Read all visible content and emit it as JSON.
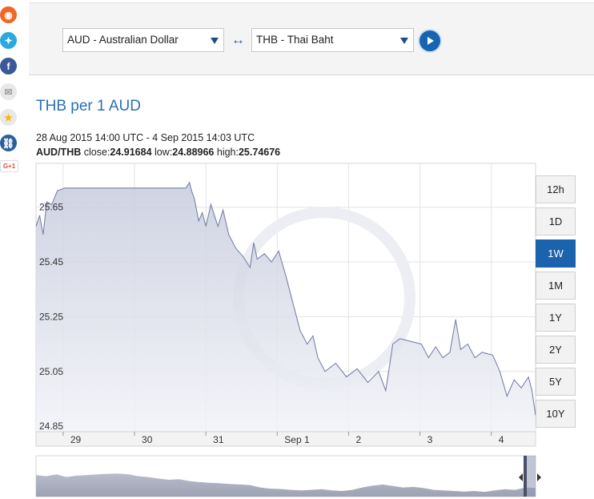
{
  "share": [
    {
      "name": "rss-icon",
      "color": "#f26522",
      "glyph": "◉"
    },
    {
      "name": "twitter-icon",
      "color": "#2aa9e0",
      "glyph": "✦"
    },
    {
      "name": "facebook-icon",
      "color": "#3b5998",
      "glyph": "f"
    },
    {
      "name": "email-icon",
      "color": "#9e9e9e",
      "glyph": "✉"
    },
    {
      "name": "favorite-star-icon",
      "color": "#f5b800",
      "glyph": "★"
    },
    {
      "name": "link-icon",
      "color": "#2a5f9e",
      "glyph": "⛓"
    },
    {
      "name": "google-plus-icon",
      "color": "#dd4b39",
      "glyph": "G+1"
    }
  ],
  "converter": {
    "from": "AUD - Australian Dollar",
    "to": "THB - Thai Baht",
    "swap_glyph": "↔"
  },
  "title": "THB per 1 AUD",
  "range": "28 Aug 2015 14:00 UTC - 4 Sep 2015 14:03 UTC",
  "stats": {
    "pair": "AUD/THB",
    "close_label": "close:",
    "close": "24.91684",
    "low_label": "low:",
    "low": "24.88966",
    "high_label": "high:",
    "high": "25.74676"
  },
  "timeframes": [
    "12h",
    "1D",
    "1W",
    "1M",
    "1Y",
    "2Y",
    "5Y",
    "10Y"
  ],
  "active_timeframe": "1W",
  "chart_data": {
    "type": "area",
    "ylim": [
      24.83,
      25.81
    ],
    "xlim": [
      0,
      7
    ],
    "yticks": [
      {
        "v": 25.65,
        "label": "25.65"
      },
      {
        "v": 25.45,
        "label": "25.45"
      },
      {
        "v": 25.25,
        "label": "25.25"
      },
      {
        "v": 25.05,
        "label": "25.05"
      },
      {
        "v": 24.85,
        "label": "24.85"
      }
    ],
    "xticks": [
      {
        "v": 0.38,
        "label": "29"
      },
      {
        "v": 1.38,
        "label": "30"
      },
      {
        "v": 2.38,
        "label": "31"
      },
      {
        "v": 3.38,
        "label": "Sep 1"
      },
      {
        "v": 4.38,
        "label": "2"
      },
      {
        "v": 5.38,
        "label": "3"
      },
      {
        "v": 6.38,
        "label": "4"
      }
    ],
    "x": [
      0,
      0.05,
      0.1,
      0.15,
      0.22,
      0.3,
      0.4,
      0.6,
      0.9,
      1.3,
      1.8,
      2.1,
      2.15,
      2.18,
      2.22,
      2.28,
      2.33,
      2.38,
      2.45,
      2.55,
      2.62,
      2.7,
      2.8,
      2.9,
      3.0,
      3.05,
      3.1,
      3.2,
      3.3,
      3.4,
      3.5,
      3.6,
      3.7,
      3.8,
      3.88,
      3.95,
      4.05,
      4.2,
      4.35,
      4.5,
      4.65,
      4.8,
      4.9,
      5.0,
      5.1,
      5.25,
      5.4,
      5.5,
      5.6,
      5.7,
      5.8,
      5.88,
      5.95,
      6.05,
      6.15,
      6.25,
      6.4,
      6.5,
      6.6,
      6.7,
      6.8,
      6.9,
      6.95,
      7.0
    ],
    "y": [
      25.58,
      25.62,
      25.55,
      25.67,
      25.66,
      25.71,
      25.72,
      25.72,
      25.72,
      25.72,
      25.72,
      25.72,
      25.74,
      25.71,
      25.68,
      25.6,
      25.63,
      25.58,
      25.66,
      25.58,
      25.64,
      25.55,
      25.5,
      25.47,
      25.43,
      25.52,
      25.46,
      25.48,
      25.45,
      25.49,
      25.4,
      25.3,
      25.2,
      25.15,
      25.18,
      25.1,
      25.05,
      25.08,
      25.03,
      25.06,
      25.01,
      25.05,
      24.98,
      25.15,
      25.17,
      25.16,
      25.15,
      25.1,
      25.14,
      25.1,
      25.12,
      25.24,
      25.13,
      25.15,
      25.1,
      25.12,
      25.11,
      25.05,
      24.96,
      25.02,
      24.99,
      25.03,
      24.98,
      24.89
    ]
  },
  "navigator": {
    "y": [
      0.62,
      0.58,
      0.64,
      0.55,
      0.6,
      0.62,
      0.64,
      0.66,
      0.67,
      0.65,
      0.58,
      0.55,
      0.5,
      0.46,
      0.48,
      0.42,
      0.38,
      0.36,
      0.34,
      0.32,
      0.3,
      0.28,
      0.2,
      0.16,
      0.15,
      0.12,
      0.1,
      0.12,
      0.14,
      0.1,
      0.08,
      0.12,
      0.2,
      0.26,
      0.3,
      0.25,
      0.2,
      0.22,
      0.18,
      0.12,
      0.1,
      0.08,
      0.06,
      0.08,
      0.05,
      0.1,
      0.14,
      0.12,
      0.2,
      0.18
    ]
  }
}
